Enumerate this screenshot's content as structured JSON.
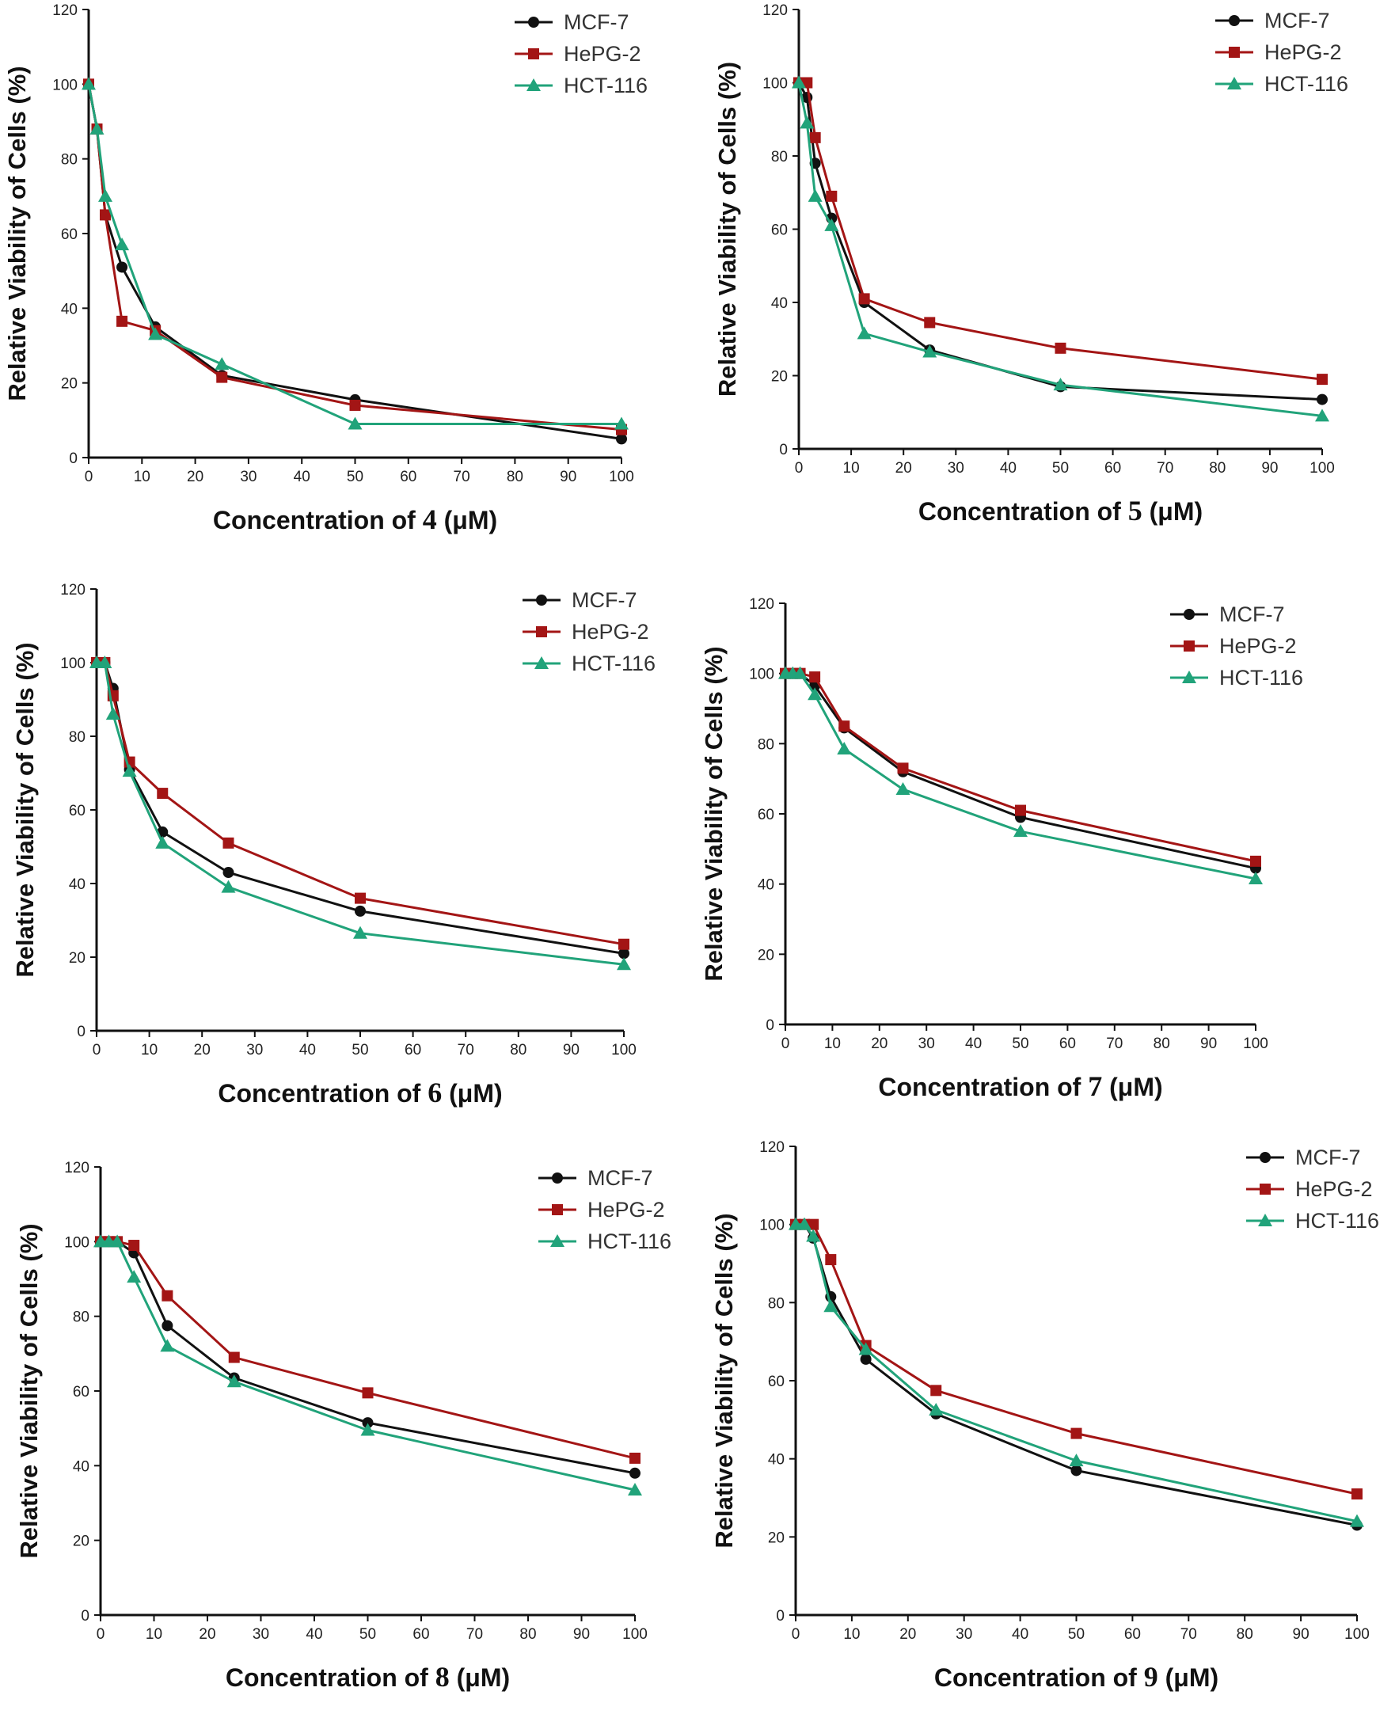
{
  "colors": {
    "MCF-7": "#111111",
    "HePG-2": "#a31515",
    "HCT-116": "#21a37a"
  },
  "chart_data": [
    {
      "type": "line",
      "ylabel": "Relative Viability of Cells (%)",
      "xlabel_prefix": "Concentration of",
      "compound": "4",
      "xlabel_suffix": "(μM)",
      "xlim": [
        0,
        100
      ],
      "ylim": [
        0,
        120
      ],
      "xticks": [
        0,
        10,
        20,
        30,
        40,
        50,
        60,
        70,
        80,
        90,
        100
      ],
      "yticks": [
        0,
        20,
        40,
        60,
        80,
        100,
        120
      ],
      "x": [
        0,
        1.56,
        3.125,
        6.25,
        12.5,
        25,
        50,
        100
      ],
      "series": [
        {
          "name": "MCF-7",
          "marker": "circle",
          "values": [
            100,
            88,
            65,
            51,
            35,
            22,
            15.5,
            5
          ]
        },
        {
          "name": "HePG-2",
          "marker": "square",
          "values": [
            100,
            88,
            65,
            36.5,
            34,
            21.5,
            14,
            7.5
          ]
        },
        {
          "name": "HCT-116",
          "marker": "triangle",
          "values": [
            100,
            88,
            70,
            57,
            33,
            25,
            9,
            9
          ]
        }
      ]
    },
    {
      "type": "line",
      "ylabel": "Relative Viability of Cells (%)",
      "xlabel_prefix": "Concentration of",
      "compound": "5",
      "xlabel_suffix": "(μM)",
      "xlim": [
        0,
        100
      ],
      "ylim": [
        0,
        120
      ],
      "xticks": [
        0,
        10,
        20,
        30,
        40,
        50,
        60,
        70,
        80,
        90,
        100
      ],
      "yticks": [
        0,
        20,
        40,
        60,
        80,
        100,
        120
      ],
      "x": [
        0,
        1.56,
        3.125,
        6.25,
        12.5,
        25,
        50,
        100
      ],
      "series": [
        {
          "name": "MCF-7",
          "marker": "circle",
          "values": [
            100,
            96,
            78,
            63,
            40,
            27,
            17,
            13.5
          ]
        },
        {
          "name": "HePG-2",
          "marker": "square",
          "values": [
            100,
            100,
            85,
            69,
            41,
            34.5,
            27.5,
            19
          ]
        },
        {
          "name": "HCT-116",
          "marker": "triangle",
          "values": [
            100,
            89,
            69,
            61,
            31.5,
            26.5,
            17.5,
            9
          ]
        }
      ]
    },
    {
      "type": "line",
      "ylabel": "Relative Viability of Cells (%)",
      "xlabel_prefix": "Concentration of",
      "compound": "6",
      "xlabel_suffix": "(μM)",
      "xlim": [
        0,
        100
      ],
      "ylim": [
        0,
        120
      ],
      "xticks": [
        0,
        10,
        20,
        30,
        40,
        50,
        60,
        70,
        80,
        90,
        100
      ],
      "yticks": [
        0,
        20,
        40,
        60,
        80,
        100,
        120
      ],
      "x": [
        0,
        1.56,
        3.125,
        6.25,
        12.5,
        25,
        50,
        100
      ],
      "series": [
        {
          "name": "MCF-7",
          "marker": "circle",
          "values": [
            100,
            100,
            93,
            71,
            54,
            43,
            32.5,
            21
          ]
        },
        {
          "name": "HePG-2",
          "marker": "square",
          "values": [
            100,
            100,
            91,
            73,
            64.5,
            51,
            36,
            23.5
          ]
        },
        {
          "name": "HCT-116",
          "marker": "triangle",
          "values": [
            100,
            100,
            86,
            70.5,
            51,
            39,
            26.5,
            18
          ]
        }
      ]
    },
    {
      "type": "line",
      "ylabel": "Relative Viability of Cells (%)",
      "xlabel_prefix": "Concentration of",
      "compound": "7",
      "xlabel_suffix": "(μM)",
      "xlim": [
        0,
        100
      ],
      "ylim": [
        0,
        120
      ],
      "xticks": [
        0,
        10,
        20,
        30,
        40,
        50,
        60,
        70,
        80,
        90,
        100
      ],
      "yticks": [
        0,
        20,
        40,
        60,
        80,
        100,
        120
      ],
      "x": [
        0,
        1.56,
        3.125,
        6.25,
        12.5,
        25,
        50,
        100
      ],
      "series": [
        {
          "name": "MCF-7",
          "marker": "circle",
          "values": [
            100,
            100,
            100,
            96.5,
            84.5,
            72,
            59,
            44.5
          ]
        },
        {
          "name": "HePG-2",
          "marker": "square",
          "values": [
            100,
            100,
            100,
            99,
            85,
            73,
            61,
            46.5
          ]
        },
        {
          "name": "HCT-116",
          "marker": "triangle",
          "values": [
            100,
            100,
            100,
            94,
            78.5,
            67,
            55,
            41.5
          ]
        }
      ]
    },
    {
      "type": "line",
      "ylabel": "Relative Viability of Cells (%)",
      "xlabel_prefix": "Concentration of",
      "compound": "8",
      "xlabel_suffix": "(μM)",
      "xlim": [
        0,
        100
      ],
      "ylim": [
        0,
        120
      ],
      "xticks": [
        0,
        10,
        20,
        30,
        40,
        50,
        60,
        70,
        80,
        90,
        100
      ],
      "yticks": [
        0,
        20,
        40,
        60,
        80,
        100,
        120
      ],
      "x": [
        0,
        1.56,
        3.125,
        6.25,
        12.5,
        25,
        50,
        100
      ],
      "series": [
        {
          "name": "MCF-7",
          "marker": "circle",
          "values": [
            100,
            100,
            100,
            97,
            77.5,
            63.5,
            51.5,
            38
          ]
        },
        {
          "name": "HePG-2",
          "marker": "square",
          "values": [
            100,
            100,
            100,
            99,
            85.5,
            69,
            59.5,
            42
          ]
        },
        {
          "name": "HCT-116",
          "marker": "triangle",
          "values": [
            100,
            100,
            100,
            90.5,
            72,
            62.5,
            49.5,
            33.5
          ]
        }
      ]
    },
    {
      "type": "line",
      "ylabel": "Relative Viability of Cells (%)",
      "xlabel_prefix": "Concentration of",
      "compound": "9",
      "xlabel_suffix": "(μM)",
      "xlim": [
        0,
        100
      ],
      "ylim": [
        0,
        120
      ],
      "xticks": [
        0,
        10,
        20,
        30,
        40,
        50,
        60,
        70,
        80,
        90,
        100
      ],
      "yticks": [
        0,
        20,
        40,
        60,
        80,
        100,
        120
      ],
      "x": [
        0,
        1.56,
        3.125,
        6.25,
        12.5,
        25,
        50,
        100
      ],
      "series": [
        {
          "name": "MCF-7",
          "marker": "circle",
          "values": [
            100,
            100,
            96.5,
            81.5,
            65.5,
            51.5,
            37,
            23
          ]
        },
        {
          "name": "HePG-2",
          "marker": "square",
          "values": [
            100,
            100,
            100,
            91,
            69,
            57.5,
            46.5,
            31
          ]
        },
        {
          "name": "HCT-116",
          "marker": "triangle",
          "values": [
            100,
            100,
            97,
            79,
            68,
            52.5,
            39.5,
            24
          ]
        }
      ]
    }
  ]
}
